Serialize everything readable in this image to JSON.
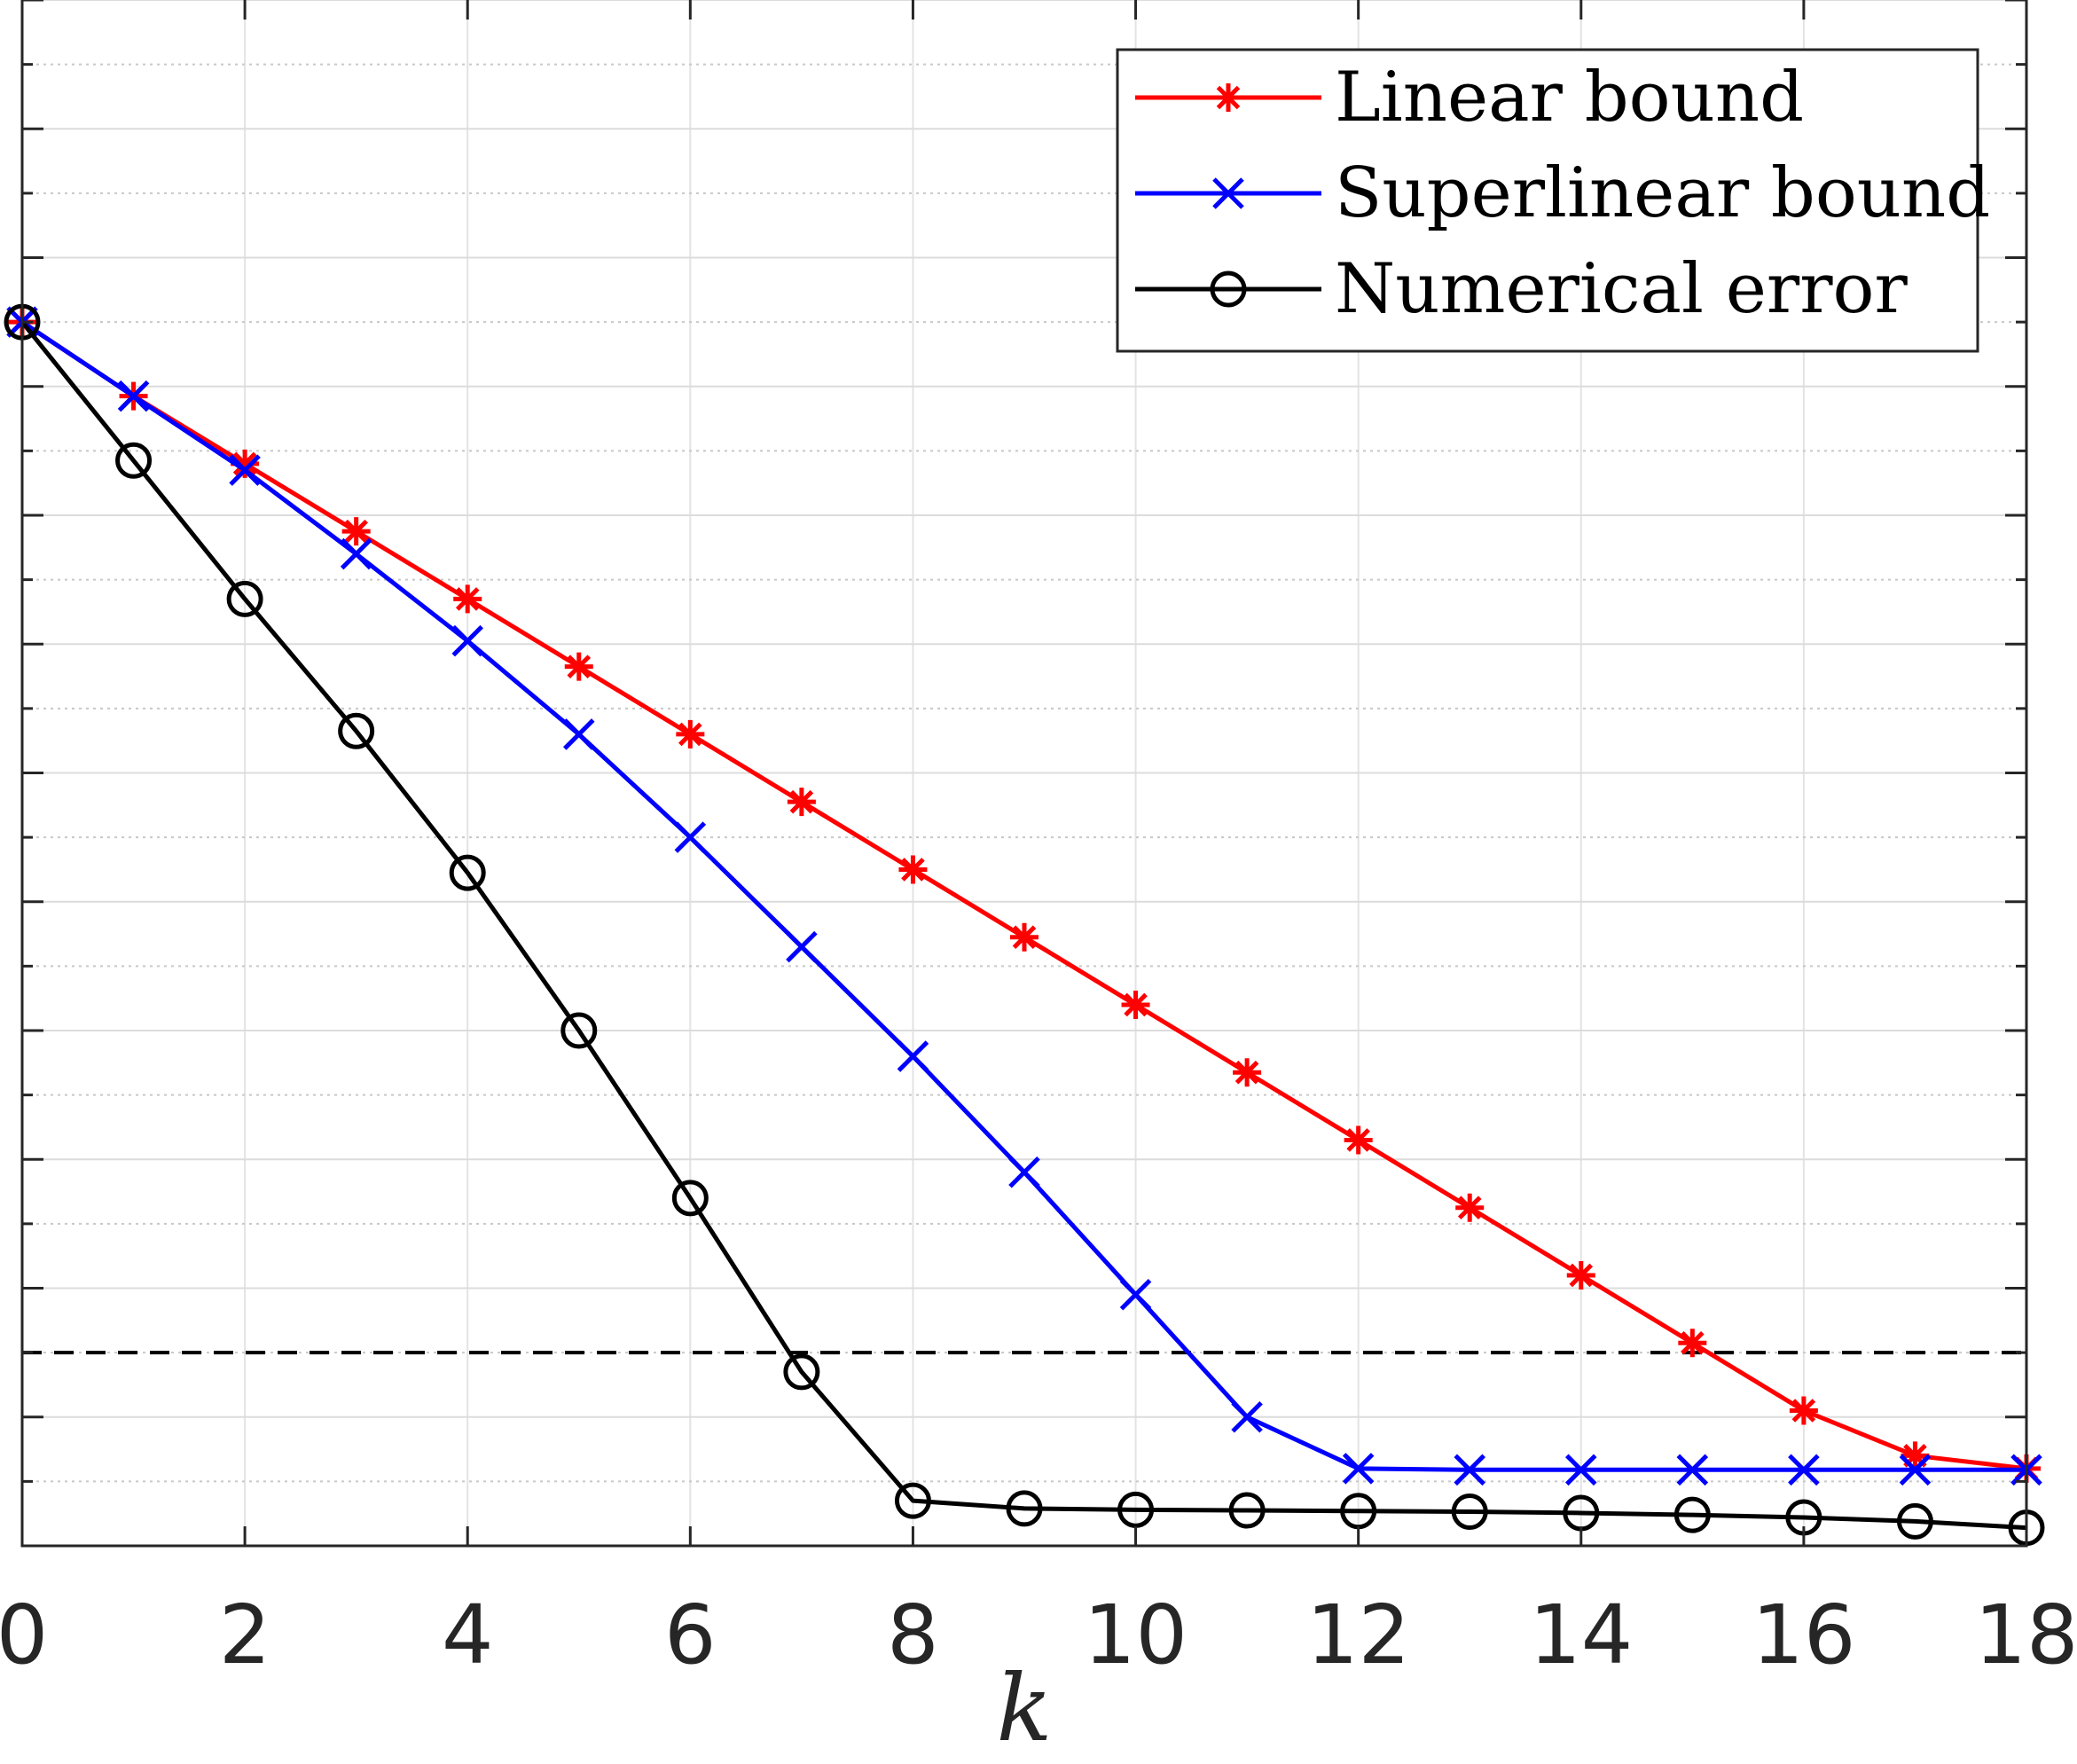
{
  "chart_data": {
    "type": "line",
    "xlabel": "k",
    "ylabel": "",
    "title": "",
    "xlim": [
      0,
      18
    ],
    "ylim": [
      -24,
      0
    ],
    "x_ticks": [
      "0",
      "2",
      "4",
      "6",
      "8",
      "10",
      "12",
      "14",
      "16",
      "18"
    ],
    "grid": true,
    "legend_position": "top-right",
    "reference_line": {
      "y": -21,
      "style": "dashed",
      "color": "#000000"
    },
    "series": [
      {
        "name": "Linear bound",
        "color": "#ff0000",
        "marker": "asterisk",
        "x": [
          0,
          1,
          2,
          3,
          4,
          5,
          6,
          7,
          8,
          9,
          10,
          11,
          12,
          13,
          14,
          15,
          16,
          17,
          18
        ],
        "y": [
          -5,
          -6.15,
          -7.2,
          -8.25,
          -9.3,
          -10.35,
          -11.4,
          -12.45,
          -13.5,
          -14.55,
          -15.6,
          -16.65,
          -17.7,
          -18.75,
          -19.8,
          -20.85,
          -21.9,
          -22.6,
          -22.8
        ]
      },
      {
        "name": "Superlinear bound",
        "color": "#0000ff",
        "marker": "x",
        "x": [
          0,
          1,
          2,
          3,
          4,
          5,
          6,
          7,
          8,
          9,
          10,
          11,
          12,
          13,
          14,
          15,
          16,
          17,
          18
        ],
        "y": [
          -5,
          -6.15,
          -7.3,
          -8.6,
          -9.95,
          -11.4,
          -13.0,
          -14.7,
          -16.4,
          -18.2,
          -20.1,
          -22.0,
          -22.8,
          -22.82,
          -22.82,
          -22.82,
          -22.82,
          -22.82,
          -22.82
        ]
      },
      {
        "name": "Numerical error",
        "color": "#000000",
        "marker": "circle",
        "x": [
          0,
          1,
          2,
          3,
          4,
          5,
          6,
          7,
          8,
          9,
          10,
          11,
          12,
          13,
          14,
          15,
          16,
          17,
          18
        ],
        "y": [
          -5,
          -7.15,
          -9.3,
          -11.35,
          -13.55,
          -16.0,
          -18.6,
          -21.3,
          -23.3,
          -23.42,
          -23.44,
          -23.45,
          -23.46,
          -23.47,
          -23.49,
          -23.52,
          -23.56,
          -23.62,
          -23.72
        ]
      }
    ]
  }
}
